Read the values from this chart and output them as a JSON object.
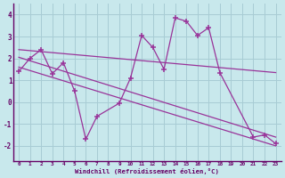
{
  "background_color": "#c8e8ec",
  "grid_color": "#a8ccd4",
  "line_color": "#993399",
  "xlabel": "Windchill (Refroidissement éolien,°C)",
  "xlim": [
    -0.5,
    23.5
  ],
  "ylim": [
    -2.7,
    4.5
  ],
  "yticks": [
    -2,
    -1,
    0,
    1,
    2,
    3,
    4
  ],
  "xticks": [
    0,
    1,
    2,
    3,
    4,
    5,
    6,
    7,
    8,
    9,
    10,
    11,
    12,
    13,
    14,
    15,
    16,
    17,
    18,
    19,
    20,
    21,
    22,
    23
  ],
  "main_x": [
    0,
    1,
    2,
    3,
    4,
    5,
    6,
    7,
    9,
    10,
    11,
    12,
    13,
    14,
    15,
    16,
    17,
    18,
    21,
    22,
    23
  ],
  "main_y": [
    1.4,
    2.0,
    2.4,
    1.3,
    1.8,
    0.5,
    -1.7,
    -0.65,
    -0.05,
    1.1,
    3.05,
    2.5,
    1.5,
    3.85,
    3.7,
    3.05,
    3.4,
    1.35,
    -1.6,
    -1.5,
    -1.9
  ],
  "trend1_x": [
    0,
    23
  ],
  "trend1_y": [
    2.4,
    1.35
  ],
  "trend2_x": [
    0,
    23
  ],
  "trend2_y": [
    2.05,
    -1.6
  ],
  "trend3_x": [
    0,
    23
  ],
  "trend3_y": [
    1.6,
    -2.0
  ],
  "xlabel_color": "#660066",
  "axis_color": "#660066",
  "tick_color": "#660066"
}
